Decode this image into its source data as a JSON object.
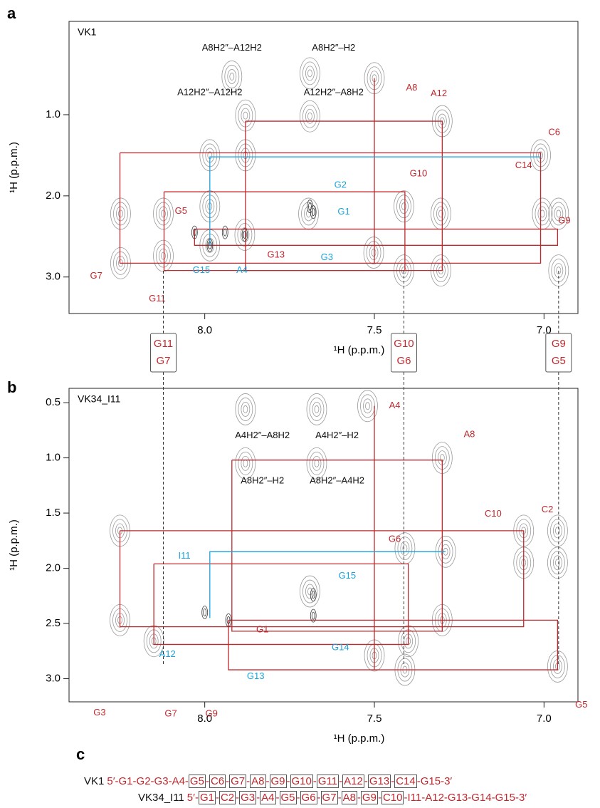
{
  "panel_labels": [
    "a",
    "b",
    "c"
  ],
  "chart_data": [
    {
      "type": "contour",
      "label": "VK1",
      "xlabel": "¹H (p.p.m.)",
      "ylabel": "¹H (p.p.m.)",
      "inverted": true,
      "xlim": [
        8.4,
        6.9
      ],
      "ylim": [
        -0.15,
        3.45
      ],
      "xticks": [
        {
          "value": 8,
          "label": "8.0"
        },
        {
          "value": 7.5,
          "label": "7.5"
        },
        {
          "value": 7,
          "label": "7.0"
        }
      ],
      "yticks": [
        {
          "value": 1,
          "label": "1.0"
        },
        {
          "value": 2,
          "label": "2.0"
        },
        {
          "value": 3,
          "label": "3.0"
        }
      ],
      "peak_color": "#9a9a9a",
      "strong_color": "#3a3a3a",
      "peaks": {
        "x": [
          7.5,
          7.92,
          7.69,
          7.88,
          7.69,
          7.3,
          7.985,
          7.88,
          7.01,
          8.248,
          8.248,
          8.122,
          8.122,
          7.985,
          7.985,
          7.882,
          7.694,
          7.502,
          7.413,
          7.413,
          7.304,
          7.304,
          7.005,
          6.957,
          6.957
        ],
        "y": [
          0.55,
          0.53,
          0.49,
          1.01,
          1.02,
          1.08,
          1.5,
          1.5,
          1.5,
          2.22,
          2.83,
          2.22,
          2.74,
          2.13,
          2.61,
          2.48,
          2.22,
          2.7,
          2.13,
          2.92,
          2.22,
          2.92,
          2.22,
          2.22,
          2.92
        ]
      },
      "strong_peaks": {
        "x": [
          8.03,
          7.94,
          7.985,
          7.882,
          7.69,
          7.68
        ],
        "y": [
          2.45,
          2.45,
          2.61,
          2.48,
          2.13,
          2.2
        ]
      },
      "walks": [
        {
          "color": "#c0282d",
          "x": [
            8.25,
            7.01,
            7.01,
            8.25,
            8.25
          ],
          "y": [
            1.47,
            1.47,
            2.83,
            2.83,
            1.47
          ]
        },
        {
          "color": "#c0282d",
          "x": [
            8.12,
            7.41,
            7.41,
            8.12,
            8.12
          ],
          "y": [
            1.95,
            1.95,
            2.92,
            2.92,
            1.95
          ]
        },
        {
          "color": "#c0282d",
          "x": [
            7.88,
            7.3,
            7.3,
            7.88,
            7.88
          ],
          "y": [
            1.08,
            1.08,
            2.92,
            2.92,
            1.08
          ]
        },
        {
          "color": "#c0282d",
          "x": [
            8.03,
            6.96,
            6.96,
            8.03,
            8.03
          ],
          "y": [
            2.41,
            2.41,
            2.61,
            2.61,
            2.41
          ]
        },
        {
          "color": "#c0282d",
          "x": [
            7.5,
            7.5
          ],
          "y": [
            0.55,
            2.83
          ]
        },
        {
          "color": "#1aa3dc",
          "x": [
            7.985,
            7.985,
            7.01
          ],
          "y": [
            2.61,
            1.52,
            1.52
          ]
        }
      ],
      "annotations": [
        {
          "text": "A8H2″–A12H2",
          "x": 7.92,
          "y": 0.18,
          "color": "#111111"
        },
        {
          "text": "A8H2″–H2",
          "x": 7.62,
          "y": 0.18,
          "color": "#111111"
        },
        {
          "text": "A12H2″–A12H2",
          "x": 7.985,
          "y": 0.73,
          "color": "#111111"
        },
        {
          "text": "A12H2″–A8H2",
          "x": 7.62,
          "y": 0.73,
          "color": "#111111"
        },
        {
          "text": "A8",
          "x": 7.39,
          "y": 0.67,
          "color": "#c0282d"
        },
        {
          "text": "A12",
          "x": 7.31,
          "y": 0.74,
          "color": "#c0282d"
        },
        {
          "text": "C6",
          "x": 6.97,
          "y": 1.22,
          "color": "#c0282d"
        },
        {
          "text": "C14",
          "x": 7.06,
          "y": 1.63,
          "color": "#c0282d"
        },
        {
          "text": "G10",
          "x": 7.37,
          "y": 1.73,
          "color": "#c0282d"
        },
        {
          "text": "G9",
          "x": 6.94,
          "y": 2.31,
          "color": "#c0282d"
        },
        {
          "text": "G5",
          "x": 8.07,
          "y": 2.19,
          "color": "#c0282d"
        },
        {
          "text": "G13",
          "x": 7.79,
          "y": 2.73,
          "color": "#c0282d"
        },
        {
          "text": "G7",
          "x": 8.32,
          "y": 2.99,
          "color": "#c0282d"
        },
        {
          "text": "G11",
          "x": 8.14,
          "y": 3.27,
          "color": "#c0282d"
        },
        {
          "text": "G2",
          "x": 7.6,
          "y": 1.87,
          "color": "#1aa3dc"
        },
        {
          "text": "G1",
          "x": 7.59,
          "y": 2.2,
          "color": "#1aa3dc"
        },
        {
          "text": "G3",
          "x": 7.64,
          "y": 2.76,
          "color": "#1aa3dc"
        },
        {
          "text": "G15",
          "x": 8.01,
          "y": 2.92,
          "color": "#1aa3dc"
        },
        {
          "text": "A4",
          "x": 7.89,
          "y": 2.92,
          "color": "#1aa3dc"
        }
      ]
    },
    {
      "type": "contour",
      "label": "VK34_I11",
      "xlabel": "¹H (p.p.m.)",
      "ylabel": "¹H (p.p.m.)",
      "inverted": true,
      "xlim": [
        8.4,
        6.9
      ],
      "ylim": [
        0.37,
        3.21
      ],
      "xticks": [
        {
          "value": 8,
          "label": "8.0"
        },
        {
          "value": 7.5,
          "label": "7.5"
        },
        {
          "value": 7,
          "label": "7.0"
        }
      ],
      "yticks": [
        0.5,
        {
          "value": 1,
          "label": "1.0"
        },
        1.5,
        {
          "value": 2,
          "label": "2.0"
        },
        2.5,
        {
          "value": 3,
          "label": "3.0"
        }
      ],
      "peak_color": "#9a9a9a",
      "strong_color": "#3a3a3a",
      "peaks": {
        "x": [
          7.88,
          7.67,
          7.52,
          7.88,
          7.67,
          7.3,
          8.25,
          7.06,
          6.96,
          7.41,
          7.29,
          8.25,
          8.15,
          7.4,
          7.3,
          7.06,
          6.96,
          6.96,
          7.5,
          7.69,
          7.41
        ],
        "y": [
          0.56,
          0.56,
          0.53,
          1.05,
          1.05,
          1.0,
          1.66,
          1.66,
          1.66,
          1.82,
          1.85,
          2.47,
          2.66,
          2.66,
          2.47,
          1.95,
          1.95,
          2.89,
          2.79,
          2.21,
          2.92
        ]
      },
      "strong_peaks": {
        "x": [
          8.0,
          7.93,
          7.68,
          7.68
        ],
        "y": [
          2.4,
          2.47,
          2.24,
          2.43
        ]
      },
      "walks": [
        {
          "color": "#c0282d",
          "x": [
            8.25,
            7.06,
            7.06,
            8.25,
            8.25
          ],
          "y": [
            1.66,
            1.66,
            2.53,
            2.53,
            1.66
          ]
        },
        {
          "color": "#c0282d",
          "x": [
            8.15,
            7.4,
            7.4,
            8.15,
            8.15
          ],
          "y": [
            1.96,
            1.96,
            2.69,
            2.69,
            1.96
          ]
        },
        {
          "color": "#c0282d",
          "x": [
            7.92,
            7.3,
            7.3,
            7.92,
            7.92
          ],
          "y": [
            1.02,
            1.02,
            2.57,
            2.57,
            1.02
          ]
        },
        {
          "color": "#c0282d",
          "x": [
            7.93,
            6.96,
            6.96,
            7.93,
            7.93
          ],
          "y": [
            2.47,
            2.47,
            2.92,
            2.92,
            2.47
          ]
        },
        {
          "color": "#c0282d",
          "x": [
            7.5,
            7.5
          ],
          "y": [
            0.53,
            2.92
          ]
        },
        {
          "color": "#1aa3dc",
          "x": [
            7.985,
            7.985,
            7.29
          ],
          "y": [
            2.45,
            1.85,
            1.85
          ]
        }
      ],
      "annotations": [
        {
          "text": "A4H2″–A8H2",
          "x": 7.83,
          "y": 0.8,
          "color": "#111111"
        },
        {
          "text": "A4H2″–H2",
          "x": 7.61,
          "y": 0.8,
          "color": "#111111"
        },
        {
          "text": "A8H2″–H2",
          "x": 7.83,
          "y": 1.21,
          "color": "#111111"
        },
        {
          "text": "A8H2″–A4H2",
          "x": 7.61,
          "y": 1.21,
          "color": "#111111"
        },
        {
          "text": "A4",
          "x": 7.44,
          "y": 0.53,
          "color": "#c0282d"
        },
        {
          "text": "A8",
          "x": 7.22,
          "y": 0.79,
          "color": "#c0282d"
        },
        {
          "text": "C2",
          "x": 6.99,
          "y": 1.47,
          "color": "#c0282d"
        },
        {
          "text": "C10",
          "x": 7.15,
          "y": 1.51,
          "color": "#c0282d"
        },
        {
          "text": "G6",
          "x": 7.44,
          "y": 1.74,
          "color": "#c0282d"
        },
        {
          "text": "G1",
          "x": 7.83,
          "y": 2.56,
          "color": "#c0282d"
        },
        {
          "text": "G3",
          "x": 8.31,
          "y": 3.31,
          "color": "#c0282d"
        },
        {
          "text": "G7",
          "x": 8.1,
          "y": 3.32,
          "color": "#c0282d"
        },
        {
          "text": "G9",
          "x": 7.98,
          "y": 3.32,
          "color": "#c0282d"
        },
        {
          "text": "G5",
          "x": 6.89,
          "y": 3.24,
          "color": "#c0282d"
        },
        {
          "text": "I11",
          "x": 8.06,
          "y": 1.89,
          "color": "#1aa3dc"
        },
        {
          "text": "G15",
          "x": 7.58,
          "y": 2.07,
          "color": "#1aa3dc"
        },
        {
          "text": "G14",
          "x": 7.6,
          "y": 2.72,
          "color": "#1aa3dc"
        },
        {
          "text": "A12",
          "x": 8.11,
          "y": 2.78,
          "color": "#1aa3dc"
        },
        {
          "text": "G13",
          "x": 7.85,
          "y": 2.98,
          "color": "#1aa3dc"
        }
      ]
    }
  ],
  "correspondences": [
    {
      "labels": [
        "G11",
        "G7"
      ],
      "x": 8.122
    },
    {
      "labels": [
        "G10",
        "G6"
      ],
      "x": 7.413
    },
    {
      "labels": [
        "G9",
        "G5"
      ],
      "x": 6.957
    }
  ],
  "sequences": [
    {
      "name": "VK1",
      "prefix": "5′",
      "separator": "-",
      "suffix": "3′",
      "residues": [
        "G1",
        "G2",
        "G3",
        "A4",
        "G5",
        "C6",
        "G7",
        "A8",
        "G9",
        "G10",
        "G11",
        "A12",
        "G13",
        "C14",
        "G15"
      ],
      "boxed": [
        false,
        false,
        false,
        false,
        true,
        true,
        true,
        true,
        true,
        true,
        true,
        true,
        true,
        true,
        false
      ]
    },
    {
      "name": "VK34_I11",
      "prefix": "5′",
      "separator": "-",
      "suffix": "3′",
      "residues": [
        "G1",
        "C2",
        "G3",
        "A4",
        "G5",
        "G6",
        "G7",
        "A8",
        "G9",
        "C10",
        "I11",
        "A12",
        "G13",
        "G14",
        "G15"
      ],
      "boxed": [
        true,
        true,
        true,
        true,
        true,
        true,
        true,
        true,
        true,
        true,
        false,
        false,
        false,
        false,
        false
      ]
    }
  ]
}
